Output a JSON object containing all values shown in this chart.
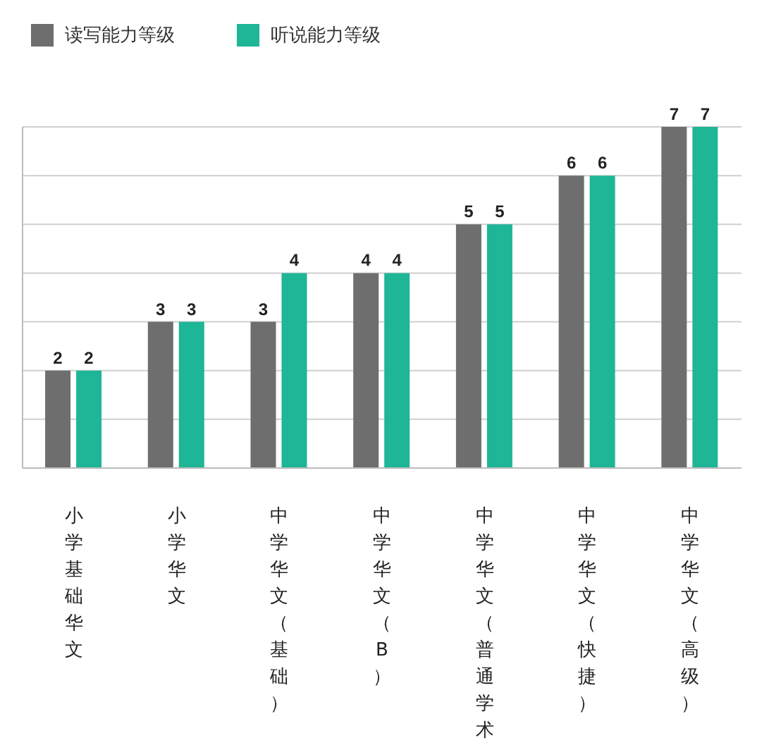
{
  "chart_data": {
    "type": "bar",
    "categories": [
      "小学基础华文",
      "小学华文",
      "中学华文（基础）",
      "中学华文（B）",
      "中学华文（普通学术）",
      "中学华文（快捷）",
      "中学华文（高级）"
    ],
    "series": [
      {
        "name": "读写能力等级",
        "color": "#6e6e6e",
        "values": [
          2,
          3,
          3,
          4,
          5,
          6,
          7
        ]
      },
      {
        "name": "听说能力等级",
        "color": "#1fb597",
        "values": [
          2,
          3,
          4,
          4,
          5,
          6,
          7
        ]
      }
    ],
    "tick_labels": "x",
    "grid": "y",
    "legend": "top left",
    "data_labels": true
  }
}
